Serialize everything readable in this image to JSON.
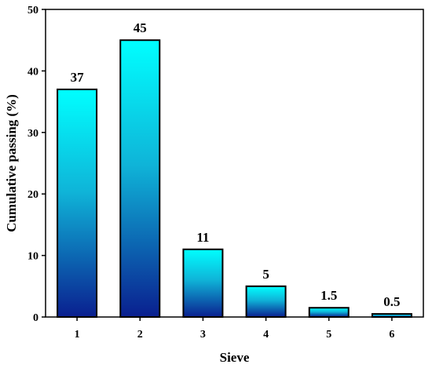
{
  "chart_data": {
    "type": "bar",
    "title": "",
    "xlabel": "Sieve",
    "ylabel": "Cumulative passing (%)",
    "ylim": [
      0,
      50
    ],
    "yticks": [
      0,
      10,
      20,
      30,
      40,
      50
    ],
    "categories": [
      "1",
      "2",
      "3",
      "4",
      "5",
      "6"
    ],
    "values": [
      37,
      45,
      11,
      5,
      1.5,
      0.5
    ],
    "value_labels": [
      "37",
      "45",
      "11",
      "5",
      "1.5",
      "0.5"
    ],
    "grid": false,
    "legend": "none",
    "colors": {
      "bar_top": "#00ffff",
      "bar_bottom": "#0a1f8f",
      "bar_edge": "#000000",
      "axis": "#000000"
    }
  }
}
